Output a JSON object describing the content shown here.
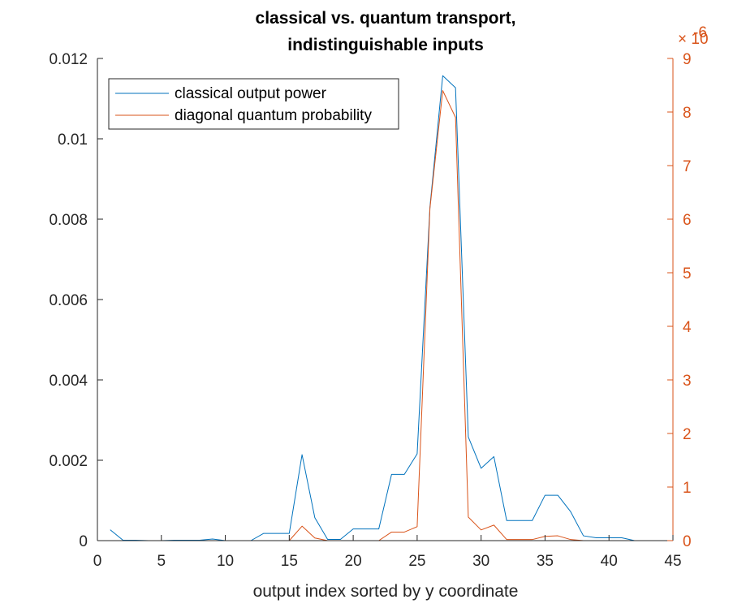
{
  "chart_data": {
    "type": "line",
    "title": [
      "classical vs. quantum transport,",
      "indistinguishable inputs"
    ],
    "xlabel": "output index sorted by y coordinate",
    "ylabel": "",
    "xlim": [
      0,
      45
    ],
    "ylim_left": [
      0,
      0.012
    ],
    "ylim_right": [
      0,
      9
    ],
    "right_axis_exponent": "× 10",
    "right_axis_exponent_power": "-6",
    "x_ticks": [
      "0",
      "5",
      "10",
      "15",
      "20",
      "25",
      "30",
      "35",
      "40",
      "45"
    ],
    "y_left_ticks": [
      "0",
      "0.002",
      "0.004",
      "0.006",
      "0.008",
      "0.01",
      "0.012"
    ],
    "y_right_ticks": [
      "0",
      "1",
      "2",
      "3",
      "4",
      "5",
      "6",
      "7",
      "8",
      "9"
    ],
    "grid": false,
    "legend_position": "top-left",
    "series": [
      {
        "name": "classical output power",
        "color": "#0072BD",
        "axis": "left",
        "x": [
          1,
          2,
          3,
          4,
          5,
          6,
          7,
          8,
          9,
          10,
          11,
          12,
          13,
          14,
          15,
          16,
          17,
          18,
          19,
          20,
          21,
          22,
          23,
          24,
          25,
          26,
          27,
          28,
          29,
          30,
          31,
          32,
          33,
          34,
          35,
          36,
          37,
          38,
          39,
          40,
          41,
          42,
          43,
          44,
          45
        ],
        "y": [
          0.00027,
          1e-05,
          1e-05,
          0,
          0,
          1e-05,
          1e-05,
          1e-05,
          4e-05,
          0,
          0,
          0,
          0.00018,
          0.00018,
          0.00018,
          0.00214,
          0.00057,
          3e-05,
          3e-05,
          0.00029,
          0.00029,
          0.00029,
          0.00165,
          0.00165,
          0.00216,
          0.0083,
          0.01157,
          0.01127,
          0.00258,
          0.0018,
          0.00209,
          0.0005,
          0.0005,
          0.0005,
          0.00113,
          0.00113,
          0.00072,
          0.00012,
          7e-05,
          7e-05,
          7e-05,
          0,
          0,
          0,
          0
        ]
      },
      {
        "name": "diagonal quantum probability",
        "color": "#D95319",
        "axis": "right",
        "x": [
          1,
          2,
          3,
          4,
          5,
          6,
          7,
          8,
          9,
          10,
          11,
          12,
          13,
          14,
          15,
          16,
          17,
          18,
          19,
          20,
          21,
          22,
          23,
          24,
          25,
          26,
          27,
          28,
          29,
          30,
          31,
          32,
          33,
          34,
          35,
          36,
          37,
          38,
          39,
          40,
          41,
          42,
          43,
          44,
          45
        ],
        "y": [
          0,
          0,
          0,
          0,
          0,
          0,
          0,
          0,
          0,
          0,
          0,
          0,
          0,
          0,
          0,
          0.27,
          0.05,
          0,
          0,
          0,
          0,
          0,
          0.16,
          0.16,
          0.26,
          6.2,
          8.4,
          7.9,
          0.44,
          0.2,
          0.29,
          0.02,
          0.02,
          0.02,
          0.08,
          0.09,
          0.02,
          0,
          0,
          0,
          0,
          0,
          0,
          0,
          0
        ]
      }
    ]
  }
}
